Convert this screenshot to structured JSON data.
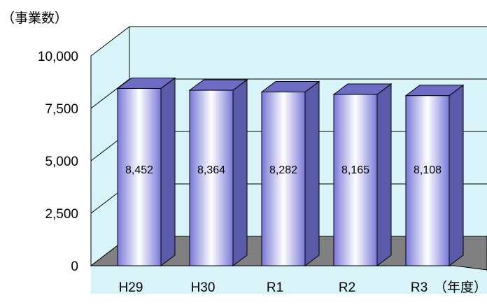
{
  "chart_data": {
    "type": "bar",
    "y_unit_label": "（事業数）",
    "x_unit_label": "（年度）",
    "categories": [
      "H29",
      "H30",
      "R1",
      "R2",
      "R3"
    ],
    "values": [
      8452,
      8364,
      8282,
      8165,
      8108
    ],
    "data_labels": [
      "8,452",
      "8,364",
      "8,282",
      "8,165",
      "8,108"
    ],
    "ylim": [
      0,
      10000
    ],
    "yticks": [
      0,
      2500,
      5000,
      7500,
      10000
    ],
    "ytick_labels": [
      "0",
      "2,500",
      "5,000",
      "7,500",
      "10,000"
    ],
    "grid": true,
    "legend": "none",
    "style": "3d",
    "colors": {
      "background": "#d8f4f8",
      "floor": "#808080",
      "bar_top": "#6c6cc4",
      "bar_side": "#5a5aaa",
      "bar_edge": "#7878d8",
      "bar_center": "#ffffff"
    }
  }
}
